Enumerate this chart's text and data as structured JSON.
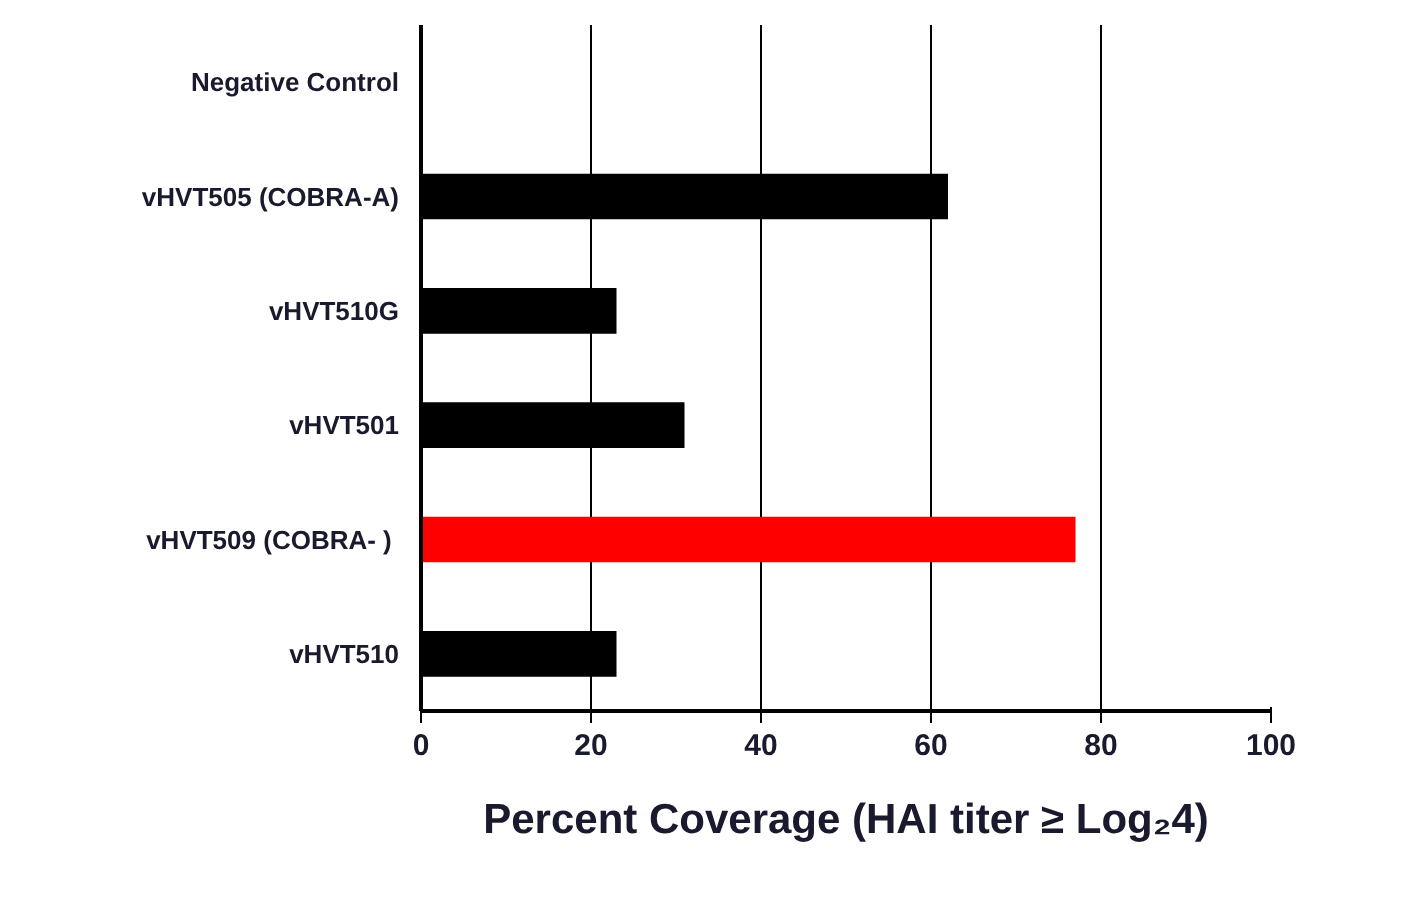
{
  "chart_data": {
    "type": "bar",
    "orientation": "horizontal",
    "categories": [
      "Negative Control",
      "vHVT505 (COBRA-A)",
      "vHVT510G",
      "vHVT501",
      "vHVT509 (COBRA-  )",
      "vHVT510"
    ],
    "values": [
      0,
      62,
      23,
      31,
      77,
      23
    ],
    "colors": [
      "#000000",
      "#000000",
      "#000000",
      "#000000",
      "#ff0000",
      "#000000"
    ],
    "xlim": [
      0,
      100
    ],
    "xticks": [
      0,
      20,
      40,
      60,
      80,
      100
    ],
    "grid": "x",
    "xlabel": "Percent Coverage (HAI titer ≥ Log₂4)"
  }
}
